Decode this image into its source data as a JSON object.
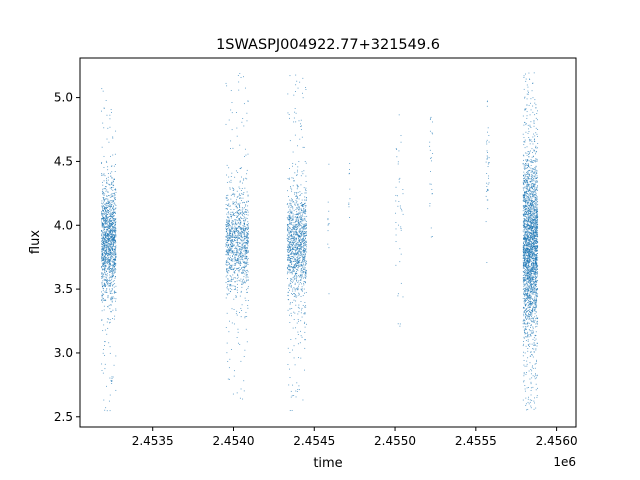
{
  "chart_data": {
    "type": "scatter",
    "title": "1SWASPJ004922.77+321549.6",
    "xlabel": "time",
    "ylabel": "flux",
    "x_offset_label": "1e6",
    "xlim": [
      2.45305,
      2.45612
    ],
    "ylim": [
      2.42,
      5.31
    ],
    "x_ticks": [
      2.4535,
      2.454,
      2.4545,
      2.455,
      2.4555,
      2.456
    ],
    "x_tick_labels": [
      "2.4535",
      "2.4540",
      "2.4545",
      "2.4550",
      "2.4555",
      "2.4560"
    ],
    "y_ticks": [
      2.5,
      3.0,
      3.5,
      4.0,
      4.5,
      5.0
    ],
    "y_tick_labels": [
      "2.5",
      "3.0",
      "3.5",
      "4.0",
      "4.5",
      "5.0"
    ],
    "grid": false,
    "marker_color": "#1f77b4",
    "series": [
      {
        "clusters": [
          {
            "x_range": [
              2.45318,
              2.45327
            ],
            "y_center": 3.88,
            "y_spread": 0.22,
            "y_range": [
              2.55,
              5.15
            ],
            "count": 1400
          },
          {
            "x_range": [
              2.45395,
              2.45409
            ],
            "y_center": 3.88,
            "y_spread": 0.2,
            "y_range": [
              2.6,
              5.2
            ],
            "count": 1100
          },
          {
            "x_range": [
              2.45433,
              2.45445
            ],
            "y_center": 3.85,
            "y_spread": 0.22,
            "y_range": [
              2.55,
              5.18
            ],
            "count": 1200
          },
          {
            "x_range": [
              2.45458,
              2.45459
            ],
            "y_center": 4.1,
            "y_spread": 0.35,
            "y_range": [
              3.3,
              4.6
            ],
            "count": 12
          },
          {
            "x_range": [
              2.45471,
              2.45472
            ],
            "y_center": 4.2,
            "y_spread": 0.2,
            "y_range": [
              3.9,
              4.5
            ],
            "count": 10
          },
          {
            "x_range": [
              2.455,
              2.45505
            ],
            "y_center": 4.2,
            "y_spread": 0.45,
            "y_range": [
              3.2,
              4.95
            ],
            "count": 45
          },
          {
            "x_range": [
              2.45521,
              2.45523
            ],
            "y_center": 4.35,
            "y_spread": 0.25,
            "y_range": [
              3.9,
              4.9
            ],
            "count": 25
          },
          {
            "x_range": [
              2.45556,
              2.45558
            ],
            "y_center": 4.5,
            "y_spread": 0.3,
            "y_range": [
              3.7,
              5.05
            ],
            "count": 40
          },
          {
            "x_range": [
              2.45579,
              2.45588
            ],
            "y_center": 3.85,
            "y_spread": 0.35,
            "y_range": [
              2.55,
              5.2
            ],
            "count": 2600
          }
        ]
      }
    ]
  }
}
